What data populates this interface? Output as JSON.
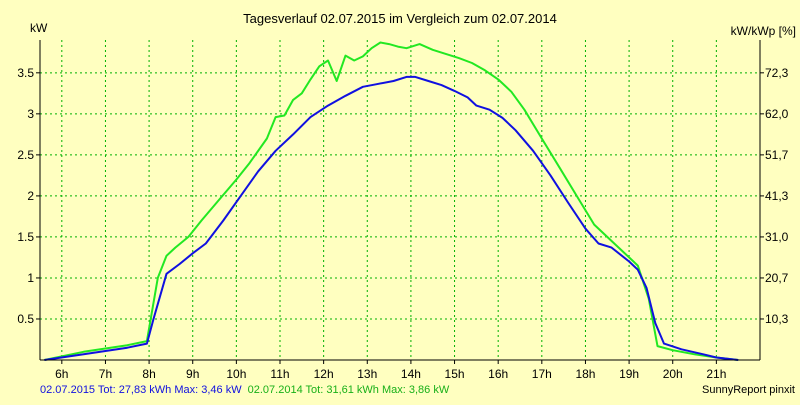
{
  "chart_data": {
    "type": "line",
    "title": "Tagesverlauf 02.07.2015 im Vergleich zum 02.07.2014",
    "ylabel_left": "kW",
    "ylabel_right": "kW/kWp [%]",
    "x_ticks": [
      {
        "label": "6h",
        "value": 6
      },
      {
        "label": "7h",
        "value": 7
      },
      {
        "label": "8h",
        "value": 8
      },
      {
        "label": "9h",
        "value": 9
      },
      {
        "label": "10h",
        "value": 10
      },
      {
        "label": "11h",
        "value": 11
      },
      {
        "label": "12h",
        "value": 12
      },
      {
        "label": "13h",
        "value": 13
      },
      {
        "label": "14h",
        "value": 14
      },
      {
        "label": "15h",
        "value": 15
      },
      {
        "label": "16h",
        "value": 16
      },
      {
        "label": "17h",
        "value": 17
      },
      {
        "label": "18h",
        "value": 18
      },
      {
        "label": "19h",
        "value": 19
      },
      {
        "label": "20h",
        "value": 20
      },
      {
        "label": "21h",
        "value": 21
      }
    ],
    "xlim": [
      5.5,
      22
    ],
    "ylim": [
      0,
      3.9
    ],
    "y_ticks_left": [
      {
        "label": "0.5",
        "value": 0.5
      },
      {
        "label": "1",
        "value": 1
      },
      {
        "label": "1.5",
        "value": 1.5
      },
      {
        "label": "2",
        "value": 2
      },
      {
        "label": "2.5",
        "value": 2.5
      },
      {
        "label": "3",
        "value": 3
      },
      {
        "label": "3.5",
        "value": 3.5
      }
    ],
    "y_ticks_right": [
      {
        "label": "10,3",
        "value": 0.5
      },
      {
        "label": "20,7",
        "value": 1
      },
      {
        "label": "31,0",
        "value": 1.5
      },
      {
        "label": "41,3",
        "value": 2
      },
      {
        "label": "51,7",
        "value": 2.5
      },
      {
        "label": "62,0",
        "value": 3
      },
      {
        "label": "72,3",
        "value": 3.5
      }
    ],
    "grid": true,
    "series": [
      {
        "name": "02.07.2014",
        "color": "#22e822",
        "x": [
          5.6,
          6.5,
          7.5,
          7.95,
          8.2,
          8.4,
          8.6,
          8.9,
          9.2,
          9.6,
          10.0,
          10.3,
          10.7,
          10.9,
          11.1,
          11.3,
          11.5,
          11.7,
          11.9,
          12.1,
          12.3,
          12.5,
          12.7,
          12.9,
          13.1,
          13.3,
          13.5,
          13.7,
          13.9,
          14.2,
          14.5,
          14.8,
          15.1,
          15.4,
          15.7,
          16.0,
          16.3,
          16.6,
          17.0,
          17.4,
          17.8,
          18.2,
          18.6,
          19.0,
          19.2,
          19.45,
          19.65,
          20.0,
          20.5,
          21.0,
          21.5
        ],
        "y": [
          0.0,
          0.1,
          0.18,
          0.23,
          1.0,
          1.27,
          1.37,
          1.5,
          1.7,
          1.95,
          2.2,
          2.4,
          2.7,
          2.96,
          2.98,
          3.17,
          3.25,
          3.42,
          3.58,
          3.65,
          3.4,
          3.71,
          3.65,
          3.7,
          3.8,
          3.87,
          3.85,
          3.82,
          3.8,
          3.85,
          3.78,
          3.73,
          3.68,
          3.62,
          3.53,
          3.42,
          3.27,
          3.05,
          2.7,
          2.35,
          2.0,
          1.65,
          1.45,
          1.25,
          1.15,
          0.75,
          0.17,
          0.12,
          0.07,
          0.03,
          0.0
        ]
      },
      {
        "name": "02.07.2015",
        "color": "#1010e0",
        "x": [
          5.6,
          6.5,
          7.5,
          7.95,
          8.1,
          8.4,
          8.7,
          9.0,
          9.3,
          9.7,
          10.1,
          10.5,
          10.9,
          11.3,
          11.7,
          12.1,
          12.5,
          12.9,
          13.2,
          13.6,
          13.9,
          14.1,
          14.4,
          14.7,
          15.0,
          15.3,
          15.5,
          15.8,
          16.1,
          16.4,
          16.8,
          17.2,
          17.6,
          18.0,
          18.3,
          18.6,
          19.0,
          19.2,
          19.4,
          19.6,
          19.8,
          20.2,
          20.7,
          21.0,
          21.5
        ],
        "y": [
          0.0,
          0.07,
          0.15,
          0.2,
          0.5,
          1.05,
          1.17,
          1.3,
          1.42,
          1.7,
          2.0,
          2.3,
          2.55,
          2.75,
          2.96,
          3.1,
          3.22,
          3.33,
          3.36,
          3.4,
          3.45,
          3.45,
          3.4,
          3.35,
          3.28,
          3.2,
          3.1,
          3.05,
          2.95,
          2.8,
          2.55,
          2.25,
          1.92,
          1.6,
          1.42,
          1.37,
          1.2,
          1.1,
          0.88,
          0.45,
          0.2,
          0.13,
          0.07,
          0.03,
          0.0
        ]
      }
    ],
    "footer": {
      "series_2015": "02.07.2015 Tot: 27,83 kWh Max: 3,46 kW",
      "series_2014": "02.07.2014 Tot: 31,61 kWh Max: 3,86 kW",
      "credit": "SunnyReport pinxit"
    }
  }
}
